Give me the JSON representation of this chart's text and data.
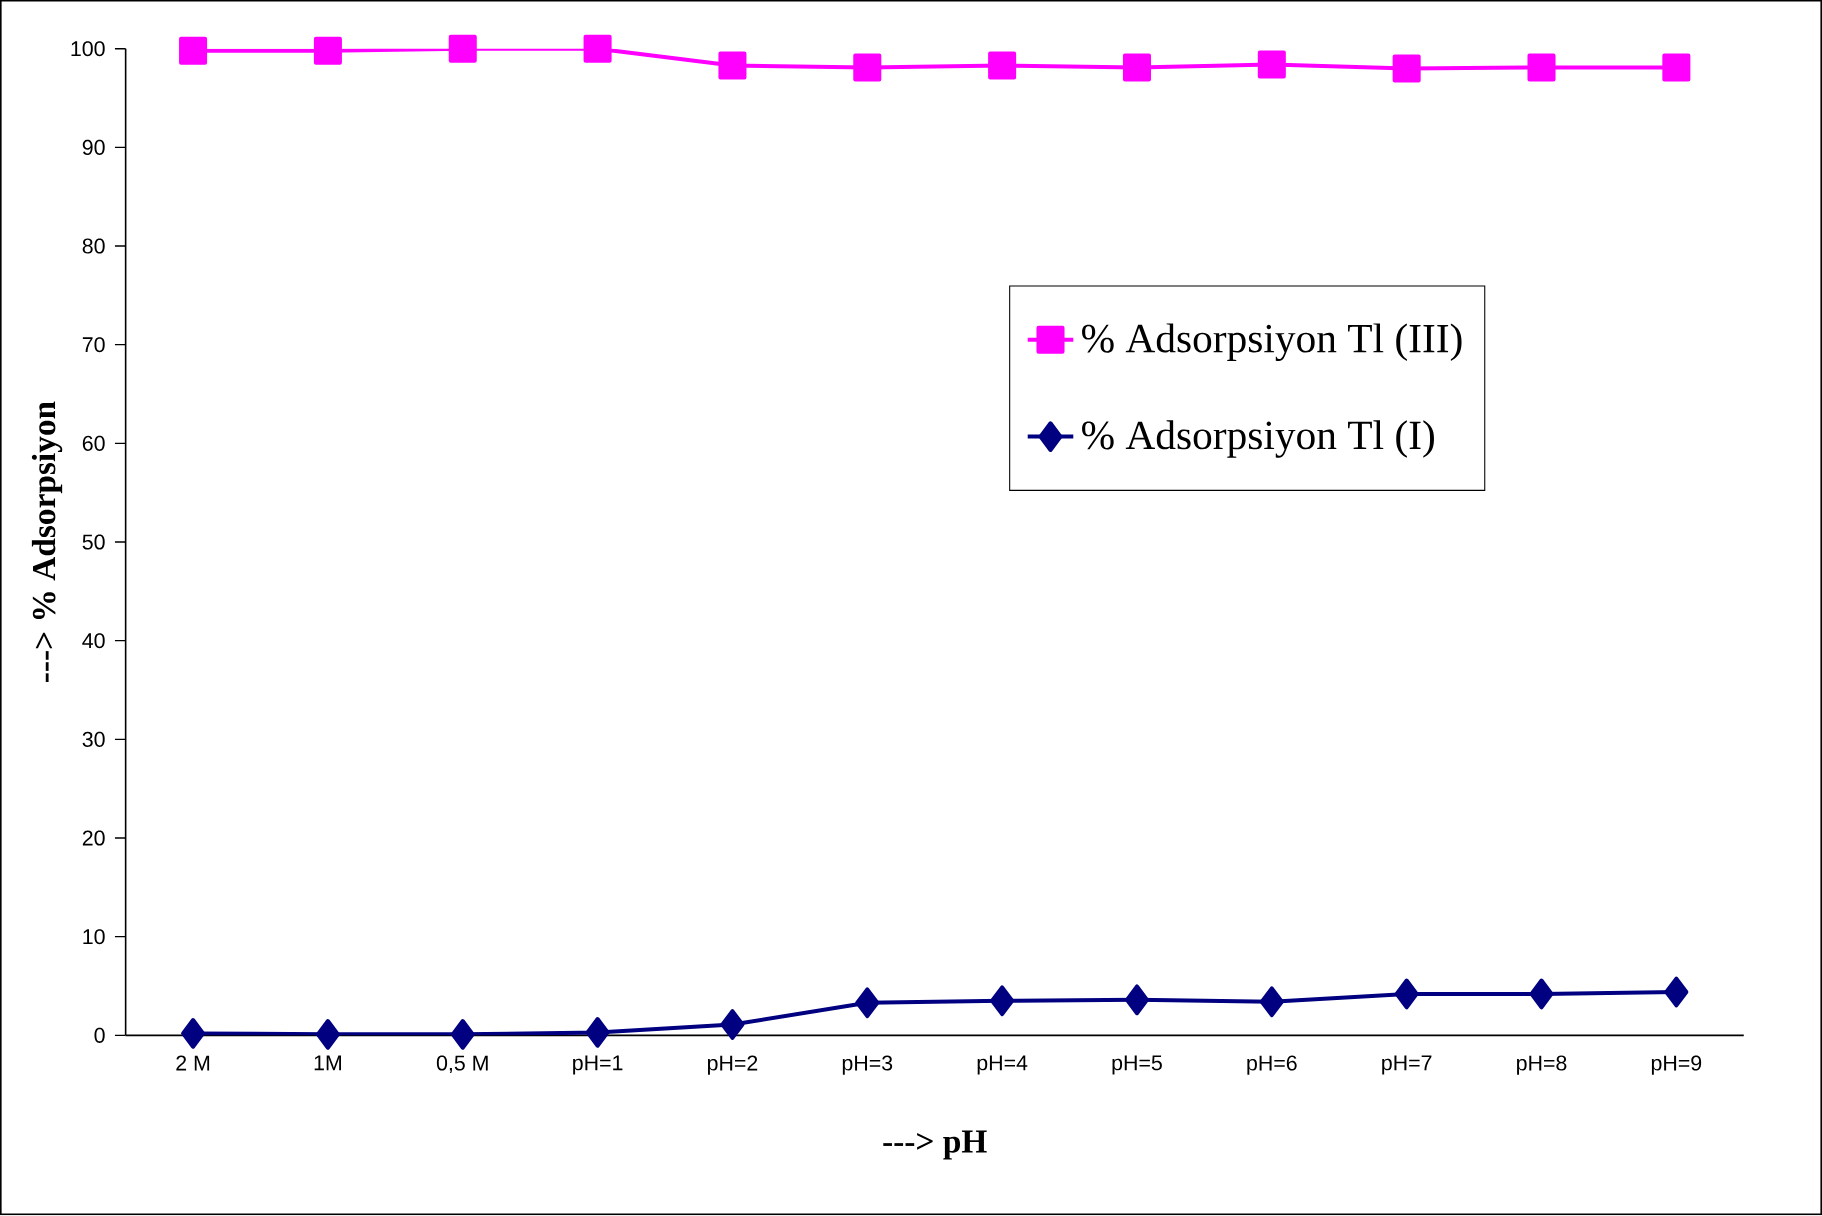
{
  "chart_data": {
    "type": "line",
    "xlabel": "---> pH",
    "ylabel": "---> % Adsorpsiyon",
    "categories": [
      "2 M",
      "1M",
      "0,5 M",
      "pH=1",
      "pH=2",
      "pH=3",
      "pH=4",
      "pH=5",
      "pH=6",
      "pH=7",
      "pH=8",
      "pH=9"
    ],
    "series": [
      {
        "name": "% Adsorpsiyon Tl (III)",
        "color": "#ff00ff",
        "marker": "square",
        "values": [
          99.8,
          99.8,
          100,
          100,
          98.3,
          98.1,
          98.3,
          98.1,
          98.4,
          98.0,
          98.1,
          98.1
        ]
      },
      {
        "name": "% Adsorpsiyon Tl (I)",
        "color": "#000080",
        "marker": "diamond",
        "values": [
          0.2,
          0.1,
          0.1,
          0.3,
          1.1,
          3.3,
          3.5,
          3.6,
          3.4,
          4.2,
          4.2,
          4.4
        ]
      }
    ],
    "ylim": [
      0,
      100
    ],
    "yticks": [
      0,
      10,
      20,
      30,
      40,
      50,
      60,
      70,
      80,
      90,
      100
    ],
    "grid": false,
    "legend": "right",
    "line_style": "solid"
  }
}
